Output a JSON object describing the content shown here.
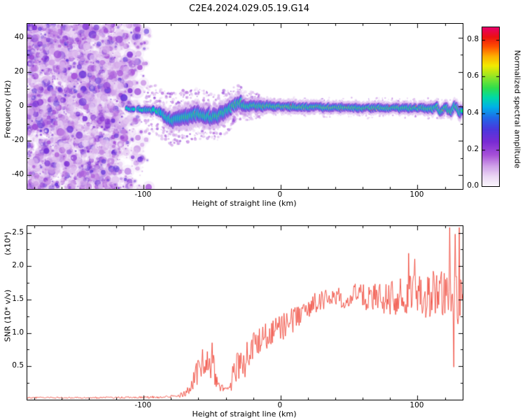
{
  "title": "C2E4.2024.029.05.19.G14",
  "chart_data": [
    {
      "type": "heatmap",
      "name": "doppler-spectrogram",
      "xlabel": "Height of straight line (km)",
      "ylabel": "Frequency (Hz)",
      "xlim": [
        -185,
        133
      ],
      "ylim": [
        -48,
        48
      ],
      "xticks": [
        -100,
        0,
        100
      ],
      "x_minor_step": 20,
      "yticks": [
        40,
        20,
        0,
        -20,
        -40
      ],
      "y_minor_step": 10,
      "colorbar": {
        "label": "Normalized spectral amplitude",
        "tick_labels": [
          "0.0",
          "0.2",
          "0.4",
          "0.6",
          "0.8"
        ],
        "tick_values": [
          0,
          0.2,
          0.4,
          0.6,
          0.8
        ],
        "value_max": 0.87,
        "colormap_stops": [
          [
            0.0,
            "#fbf7fd"
          ],
          [
            0.06,
            "#ecd9f5"
          ],
          [
            0.13,
            "#cf9fe8"
          ],
          [
            0.2,
            "#a64fd8"
          ],
          [
            0.28,
            "#7a2bd4"
          ],
          [
            0.36,
            "#4b38dd"
          ],
          [
            0.43,
            "#2266e8"
          ],
          [
            0.5,
            "#00b0e8"
          ],
          [
            0.56,
            "#00d9a8"
          ],
          [
            0.62,
            "#2ede4e"
          ],
          [
            0.7,
            "#9fe621"
          ],
          [
            0.76,
            "#f2ea00"
          ],
          [
            0.82,
            "#ffae00"
          ],
          [
            0.88,
            "#ff5100"
          ],
          [
            0.94,
            "#ec1111"
          ],
          [
            1.0,
            "#e80068"
          ]
        ]
      },
      "noise_seed": 77,
      "noise_region": {
        "x_full_until": -125,
        "x_fade_until": -95,
        "count": 3200,
        "value_low": 0.06,
        "value_high": 0.34
      },
      "signal_band": {
        "seed": 33,
        "x_start": -113,
        "x_blob_end": -86,
        "track_x": [
          -113,
          -105,
          -98,
          -92,
          -88,
          -84,
          -80,
          -75,
          -70,
          -65,
          -60,
          -55,
          -50,
          -45,
          -40,
          -36,
          -33,
          -30,
          -27,
          -24,
          -20,
          -15,
          -10,
          0,
          10,
          20,
          40,
          60,
          80,
          100,
          112,
          120,
          127,
          133
        ],
        "track_f": [
          -1.2,
          -1.6,
          -2,
          -2.2,
          -3,
          -6.5,
          -8,
          -7.2,
          -6.2,
          -5.2,
          -4.6,
          -5.4,
          -6.2,
          -5.2,
          -3.2,
          -1.2,
          1.2,
          2,
          1.2,
          0.2,
          0.4,
          0,
          0.2,
          0,
          -0.2,
          -0.5,
          -0.6,
          -1,
          -0.8,
          -1,
          -1.2,
          -1.8,
          -1.2,
          -2
        ],
        "halo_x": [
          -113,
          -95,
          -82,
          -65,
          -45,
          -30,
          -15,
          0,
          40,
          90,
          120,
          133
        ],
        "halo_hz": [
          4,
          5,
          7,
          8,
          7.5,
          6,
          5,
          4.5,
          4,
          4,
          4.5,
          5
        ],
        "amp_x": [
          -113,
          -95,
          -80,
          -60,
          -40,
          -25,
          -10,
          0,
          20,
          40,
          60,
          80,
          100,
          120,
          133
        ],
        "amp": [
          0.52,
          0.55,
          0.55,
          0.58,
          0.6,
          0.62,
          0.66,
          0.68,
          0.66,
          0.68,
          0.66,
          0.64,
          0.62,
          0.62,
          0.6
        ],
        "hot_x": [
          -113,
          -80,
          -45,
          -20,
          0,
          30,
          60,
          90,
          120,
          133
        ],
        "hot_p": [
          0.18,
          0.2,
          0.3,
          0.45,
          0.5,
          0.5,
          0.45,
          0.4,
          0.4,
          0.4
        ],
        "fuzz_x": [
          -100,
          -70,
          -45,
          -30,
          -15
        ],
        "fuzz_hz": [
          14,
          16,
          14,
          10,
          7
        ]
      }
    },
    {
      "type": "line",
      "name": "snr-profile",
      "xlabel": "Height of straight line (km)",
      "ylabel": "SNR (10* v/v)",
      "y_scale_label": "(x10⁴)",
      "xlim": [
        -185,
        133
      ],
      "ylim": [
        0,
        2.6
      ],
      "xticks": [
        -100,
        0,
        100
      ],
      "x_minor_step": 20,
      "ytick_labels": [
        "0.5",
        "1.0",
        "1.5",
        "2.0",
        "2.5"
      ],
      "ytick_values": [
        0.5,
        1.0,
        1.5,
        2.0,
        2.5
      ],
      "y_minor_step": 0.25,
      "line_color": "#ef3424",
      "seed": 911,
      "series": [
        {
          "name": "SNR",
          "x": [
            -185,
            -150,
            -120,
            -100,
            -85,
            -76,
            -71,
            -67,
            -63,
            -59,
            -56,
            -53,
            -50,
            -47,
            -44,
            -41,
            -38,
            -35,
            -33,
            -31,
            -28,
            -25,
            -22,
            -19,
            -16,
            -13,
            -10,
            -6,
            -2,
            2,
            6,
            10,
            15,
            20,
            25,
            30,
            35,
            40,
            45,
            50,
            55,
            60,
            65,
            70,
            75,
            80,
            85,
            90,
            95,
            100,
            105,
            110,
            115,
            120,
            124,
            128,
            131,
            133
          ],
          "mean": [
            0.03,
            0.03,
            0.03,
            0.035,
            0.04,
            0.05,
            0.08,
            0.15,
            0.3,
            0.5,
            0.62,
            0.6,
            0.45,
            0.3,
            0.2,
            0.17,
            0.15,
            0.3,
            0.55,
            0.6,
            0.55,
            0.6,
            0.7,
            0.8,
            0.85,
            0.9,
            0.95,
            1.0,
            1.05,
            1.1,
            1.15,
            1.2,
            1.3,
            1.4,
            1.45,
            1.5,
            1.5,
            1.55,
            1.5,
            1.55,
            1.6,
            1.55,
            1.5,
            1.55,
            1.5,
            1.55,
            1.5,
            1.55,
            1.6,
            1.55,
            1.5,
            1.55,
            1.6,
            1.55,
            1.65,
            1.55,
            1.5,
            1.45
          ],
          "noise": [
            0.012,
            0.012,
            0.014,
            0.016,
            0.02,
            0.025,
            0.04,
            0.08,
            0.15,
            0.2,
            0.25,
            0.22,
            0.18,
            0.12,
            0.07,
            0.06,
            0.06,
            0.2,
            0.3,
            0.28,
            0.25,
            0.25,
            0.25,
            0.25,
            0.22,
            0.22,
            0.2,
            0.2,
            0.2,
            0.2,
            0.2,
            0.2,
            0.18,
            0.18,
            0.15,
            0.15,
            0.15,
            0.15,
            0.15,
            0.15,
            0.15,
            0.18,
            0.2,
            0.22,
            0.25,
            0.28,
            0.28,
            0.3,
            0.3,
            0.33,
            0.35,
            0.38,
            0.4,
            0.42,
            0.48,
            0.5,
            0.5,
            0.45
          ]
        }
      ]
    }
  ]
}
